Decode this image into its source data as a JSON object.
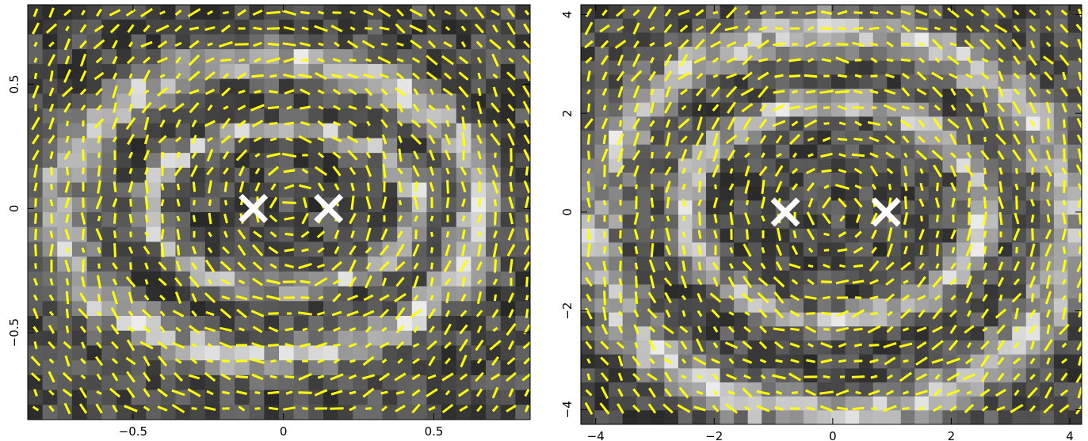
{
  "chart_data": [
    {
      "type": "vector-field-image",
      "title": "",
      "xlabel": "",
      "ylabel": "",
      "xlim": [
        -0.85,
        0.82
      ],
      "ylim": [
        -0.85,
        0.82
      ],
      "x_ticks": [
        {
          "value": -0.5,
          "label": "−0.5"
        },
        {
          "value": 0,
          "label": "0"
        },
        {
          "value": 0.5,
          "label": "0.5"
        }
      ],
      "y_ticks": [
        {
          "value": -0.5,
          "label": "−0.5"
        },
        {
          "value": 0,
          "label": "0"
        },
        {
          "value": 0.5,
          "label": "0.5"
        }
      ],
      "markers": [
        {
          "x": -0.1,
          "y": 0.0,
          "symbol": "x",
          "color": "#ffffff"
        },
        {
          "x": 0.15,
          "y": 0.0,
          "symbol": "x",
          "color": "#ffffff"
        }
      ],
      "rings": [
        {
          "cx": 0.0,
          "cy": 0.0,
          "rx": 0.45,
          "ry": 0.32
        },
        {
          "cx": -0.05,
          "cy": 0.0,
          "rx": 0.7,
          "ry": 0.6
        }
      ],
      "background": "grayscale intensity map",
      "vector_color": "#ffff00"
    },
    {
      "type": "vector-field-image",
      "title": "",
      "xlabel": "",
      "ylabel": "",
      "xlim": [
        -4.25,
        4.2
      ],
      "ylim": [
        -4.3,
        4.2
      ],
      "x_ticks": [
        {
          "value": -4,
          "label": "−4"
        },
        {
          "value": -2,
          "label": "−2"
        },
        {
          "value": 0,
          "label": "0"
        },
        {
          "value": 2,
          "label": "2"
        },
        {
          "value": 4,
          "label": "4"
        }
      ],
      "y_ticks": [
        {
          "value": -4,
          "label": "−4"
        },
        {
          "value": -2,
          "label": "−2"
        },
        {
          "value": 0,
          "label": "0"
        },
        {
          "value": 2,
          "label": "2"
        },
        {
          "value": 4,
          "label": "4"
        }
      ],
      "markers": [
        {
          "x": -0.8,
          "y": 0.0,
          "symbol": "x",
          "color": "#ffffff"
        },
        {
          "x": 0.9,
          "y": 0.0,
          "symbol": "x",
          "color": "#ffffff"
        }
      ],
      "rings": [
        {
          "cx": 0.0,
          "cy": 0.0,
          "rx": 2.5,
          "ry": 2.2
        },
        {
          "cx": 0.0,
          "cy": -0.2,
          "rx": 4.0,
          "ry": 3.9
        }
      ],
      "background": "grayscale intensity map",
      "vector_color": "#ffff00"
    }
  ]
}
